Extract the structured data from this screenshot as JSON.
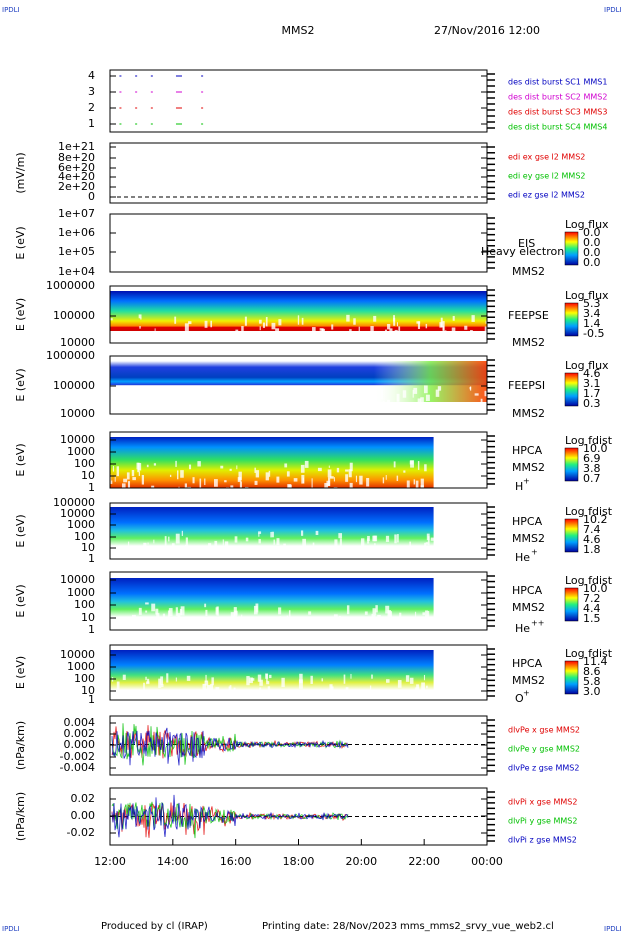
{
  "header": {
    "corner_tl": "IPDLI",
    "corner_tr": "IPDLI",
    "mission": "MMS2",
    "datetime": "27/Nov/2016 12:00"
  },
  "panels": [
    {
      "kind": "dots",
      "ylabel": "",
      "yticks": [
        "4",
        "3",
        "2",
        "1"
      ],
      "legend": [
        {
          "text": "des dist burst SC1 MMS1",
          "color": "#0000c0"
        },
        {
          "text": "des dist burst SC2 MMS2",
          "color": "#d000d0"
        },
        {
          "text": "des dist burst SC3 MMS3",
          "color": "#e00000"
        },
        {
          "text": "des dist burst SC4 MMS4",
          "color": "#00c000"
        }
      ]
    },
    {
      "kind": "zero",
      "ylabel": "(mV/m)",
      "yticks": [
        "1e+21",
        "8e+20",
        "6e+20",
        "4e+20",
        "2e+20",
        "0"
      ],
      "legend": [
        {
          "text": "edi ex gse l2 MMS2",
          "color": "#e00000"
        },
        {
          "text": "edi ey gse l2 MMS2",
          "color": "#00c000"
        },
        {
          "text": "edi ez gse l2 MMS2",
          "color": "#0000c0"
        }
      ]
    },
    {
      "kind": "empty",
      "ylabel": "E (eV)",
      "yticks": [
        "1e+07",
        "1e+06",
        "1e+05",
        "1e+04"
      ],
      "instrument": "EIS",
      "overlay": "Heavy electron to",
      "probe": "MMS2",
      "cbar_title": "Log flux",
      "cbar": [
        "0.0",
        "0.0",
        "0.0",
        "0.0"
      ]
    },
    {
      "kind": "feepse",
      "ylabel": "E (eV)",
      "yticks": [
        "1000000",
        "100000",
        "10000"
      ],
      "instrument": "FEEPSE",
      "probe": "MMS2",
      "cbar_title": "Log flux",
      "cbar": [
        "5.3",
        "3.4",
        "1.4",
        "-0.5"
      ]
    },
    {
      "kind": "feepsi",
      "ylabel": "E (eV)",
      "yticks": [
        "1000000",
        "100000",
        "10000"
      ],
      "instrument": "FEEPSI",
      "probe": "MMS2",
      "cbar_title": "Log flux",
      "cbar": [
        "4.6",
        "3.1",
        "1.7",
        "0.3"
      ]
    },
    {
      "kind": "hplus",
      "ylabel": "E (eV)",
      "yticks": [
        "10000",
        "1000",
        "100",
        "10",
        "1"
      ],
      "instrument": "HPCA",
      "probe": "MMS2",
      "species": "H",
      "charge": "+",
      "cbar_title": "Log fdist",
      "cbar": [
        "10.0",
        "6.9",
        "3.8",
        "0.7"
      ]
    },
    {
      "kind": "heplus",
      "ylabel": "E (eV)",
      "yticks": [
        "100000",
        "10000",
        "1000",
        "100",
        "10",
        "1"
      ],
      "instrument": "HPCA",
      "probe": "MMS2",
      "species": "He",
      "charge": "+",
      "cbar_title": "Log fdist",
      "cbar": [
        "10.2",
        "7.4",
        "4.6",
        "1.8"
      ]
    },
    {
      "kind": "hepp",
      "ylabel": "E (eV)",
      "yticks": [
        "10000",
        "1000",
        "100",
        "10",
        "1"
      ],
      "instrument": "HPCA",
      "probe": "MMS2",
      "species": "He",
      "charge": "++",
      "cbar_title": "Log fdist",
      "cbar": [
        "10.0",
        "7.2",
        "4.4",
        "1.5"
      ]
    },
    {
      "kind": "oplus",
      "ylabel": "E (eV)",
      "yticks": [
        "10000",
        "1000",
        "100",
        "10",
        "1"
      ],
      "instrument": "HPCA",
      "probe": "MMS2",
      "species": "O",
      "charge": "+",
      "cbar_title": "Log fdist",
      "cbar": [
        "11.4",
        "8.6",
        "5.8",
        "3.0"
      ]
    },
    {
      "kind": "wave",
      "ylabel": "(nPa/km)",
      "yticks": [
        "0.004",
        "0.002",
        "0.000",
        "-0.002",
        "-0.004"
      ],
      "legend": [
        {
          "text": "dlvPe x gse MMS2",
          "color": "#e00000"
        },
        {
          "text": "dlvPe y gse MMS2",
          "color": "#00c000"
        },
        {
          "text": "dlvPe z gse MMS2",
          "color": "#0000c0"
        }
      ]
    },
    {
      "kind": "wave",
      "ylabel": "(nPa/km)",
      "yticks": [
        "0.02",
        "0.00",
        "-0.02"
      ],
      "legend": [
        {
          "text": "dlvPi x gse MMS2",
          "color": "#e00000"
        },
        {
          "text": "dlvPi y gse MMS2",
          "color": "#00c000"
        },
        {
          "text": "dlvPi z gse MMS2",
          "color": "#0000c0"
        }
      ]
    }
  ],
  "xticks": [
    "12:00",
    "14:00",
    "16:00",
    "18:00",
    "20:00",
    "22:00",
    "00:00"
  ],
  "footer": {
    "corner_bl": "IPDLI",
    "corner_br": "IPDLI",
    "credit": "Produced by cl (IRAP)",
    "printing": "Printing date: 28/Nov/2023",
    "file": "mms_mms2_srvy_vue_web2.cl"
  }
}
